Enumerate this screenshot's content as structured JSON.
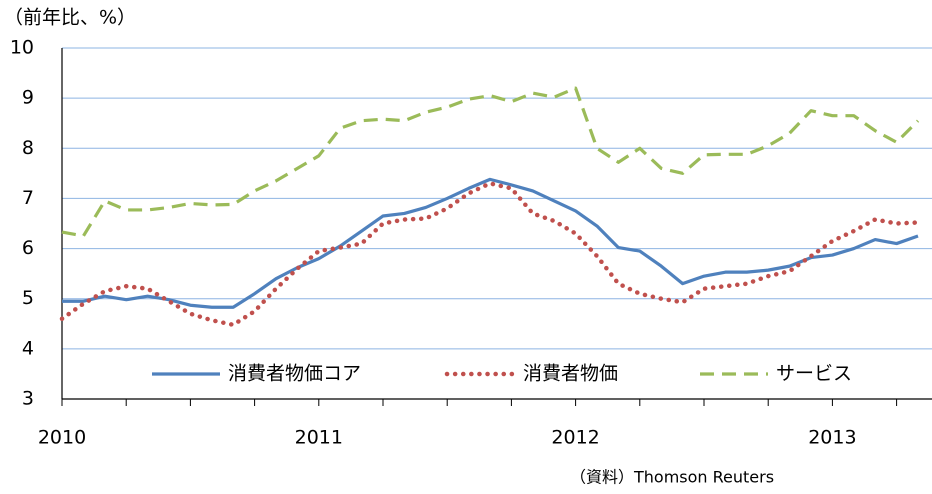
{
  "chart_data": {
    "type": "line",
    "y_unit_label": "（前年比、%）",
    "source": "（資料）Thomson Reuters",
    "categories": [
      "2010",
      null,
      null,
      null,
      null,
      null,
      null,
      null,
      null,
      null,
      null,
      null,
      "2011",
      null,
      null,
      null,
      null,
      null,
      null,
      null,
      null,
      null,
      null,
      null,
      "2012",
      null,
      null,
      null,
      null,
      null,
      null,
      null,
      null,
      null,
      null,
      null,
      "2013",
      null,
      null,
      null,
      null
    ],
    "ylim": [
      3,
      10
    ],
    "yticks": [
      3,
      4,
      5,
      6,
      7,
      8,
      9,
      10
    ],
    "grid": true,
    "series": [
      {
        "name": "消費者物価コア",
        "color": "#4f81bd",
        "style": "solid",
        "values": [
          4.95,
          4.95,
          5.05,
          4.98,
          5.05,
          4.98,
          4.87,
          4.83,
          4.83,
          5.1,
          5.4,
          5.62,
          5.8,
          6.05,
          6.35,
          6.65,
          6.7,
          6.82,
          7.0,
          7.2,
          7.38,
          7.27,
          7.15,
          6.95,
          6.75,
          6.45,
          6.02,
          5.95,
          5.65,
          5.3,
          5.45,
          5.53,
          5.53,
          5.57,
          5.65,
          5.82,
          5.87,
          6.0,
          6.18,
          6.1,
          6.25
        ]
      },
      {
        "name": "消費者物価",
        "color": "#c0504d",
        "style": "dotted",
        "values": [
          4.6,
          4.9,
          5.15,
          5.25,
          5.2,
          4.95,
          4.7,
          4.57,
          4.48,
          4.75,
          5.2,
          5.6,
          5.95,
          6.02,
          6.1,
          6.5,
          6.58,
          6.6,
          6.8,
          7.1,
          7.3,
          7.2,
          6.7,
          6.55,
          6.3,
          5.85,
          5.3,
          5.1,
          5.0,
          4.93,
          5.2,
          5.25,
          5.3,
          5.45,
          5.55,
          5.85,
          6.15,
          6.35,
          6.58,
          6.5,
          6.52
        ]
      },
      {
        "name": "サービス",
        "color": "#9bbb59",
        "style": "dashed",
        "values": [
          6.33,
          6.25,
          6.95,
          6.77,
          6.77,
          6.82,
          6.9,
          6.87,
          6.88,
          7.15,
          7.35,
          7.6,
          7.85,
          8.4,
          8.55,
          8.58,
          8.55,
          8.72,
          8.82,
          8.98,
          9.05,
          8.93,
          9.1,
          9.02,
          9.2,
          8.0,
          7.72,
          8.0,
          7.6,
          7.5,
          7.87,
          7.88,
          7.88,
          8.05,
          8.3,
          8.75,
          8.65,
          8.65,
          8.35,
          8.12,
          8.55
        ]
      }
    ]
  }
}
